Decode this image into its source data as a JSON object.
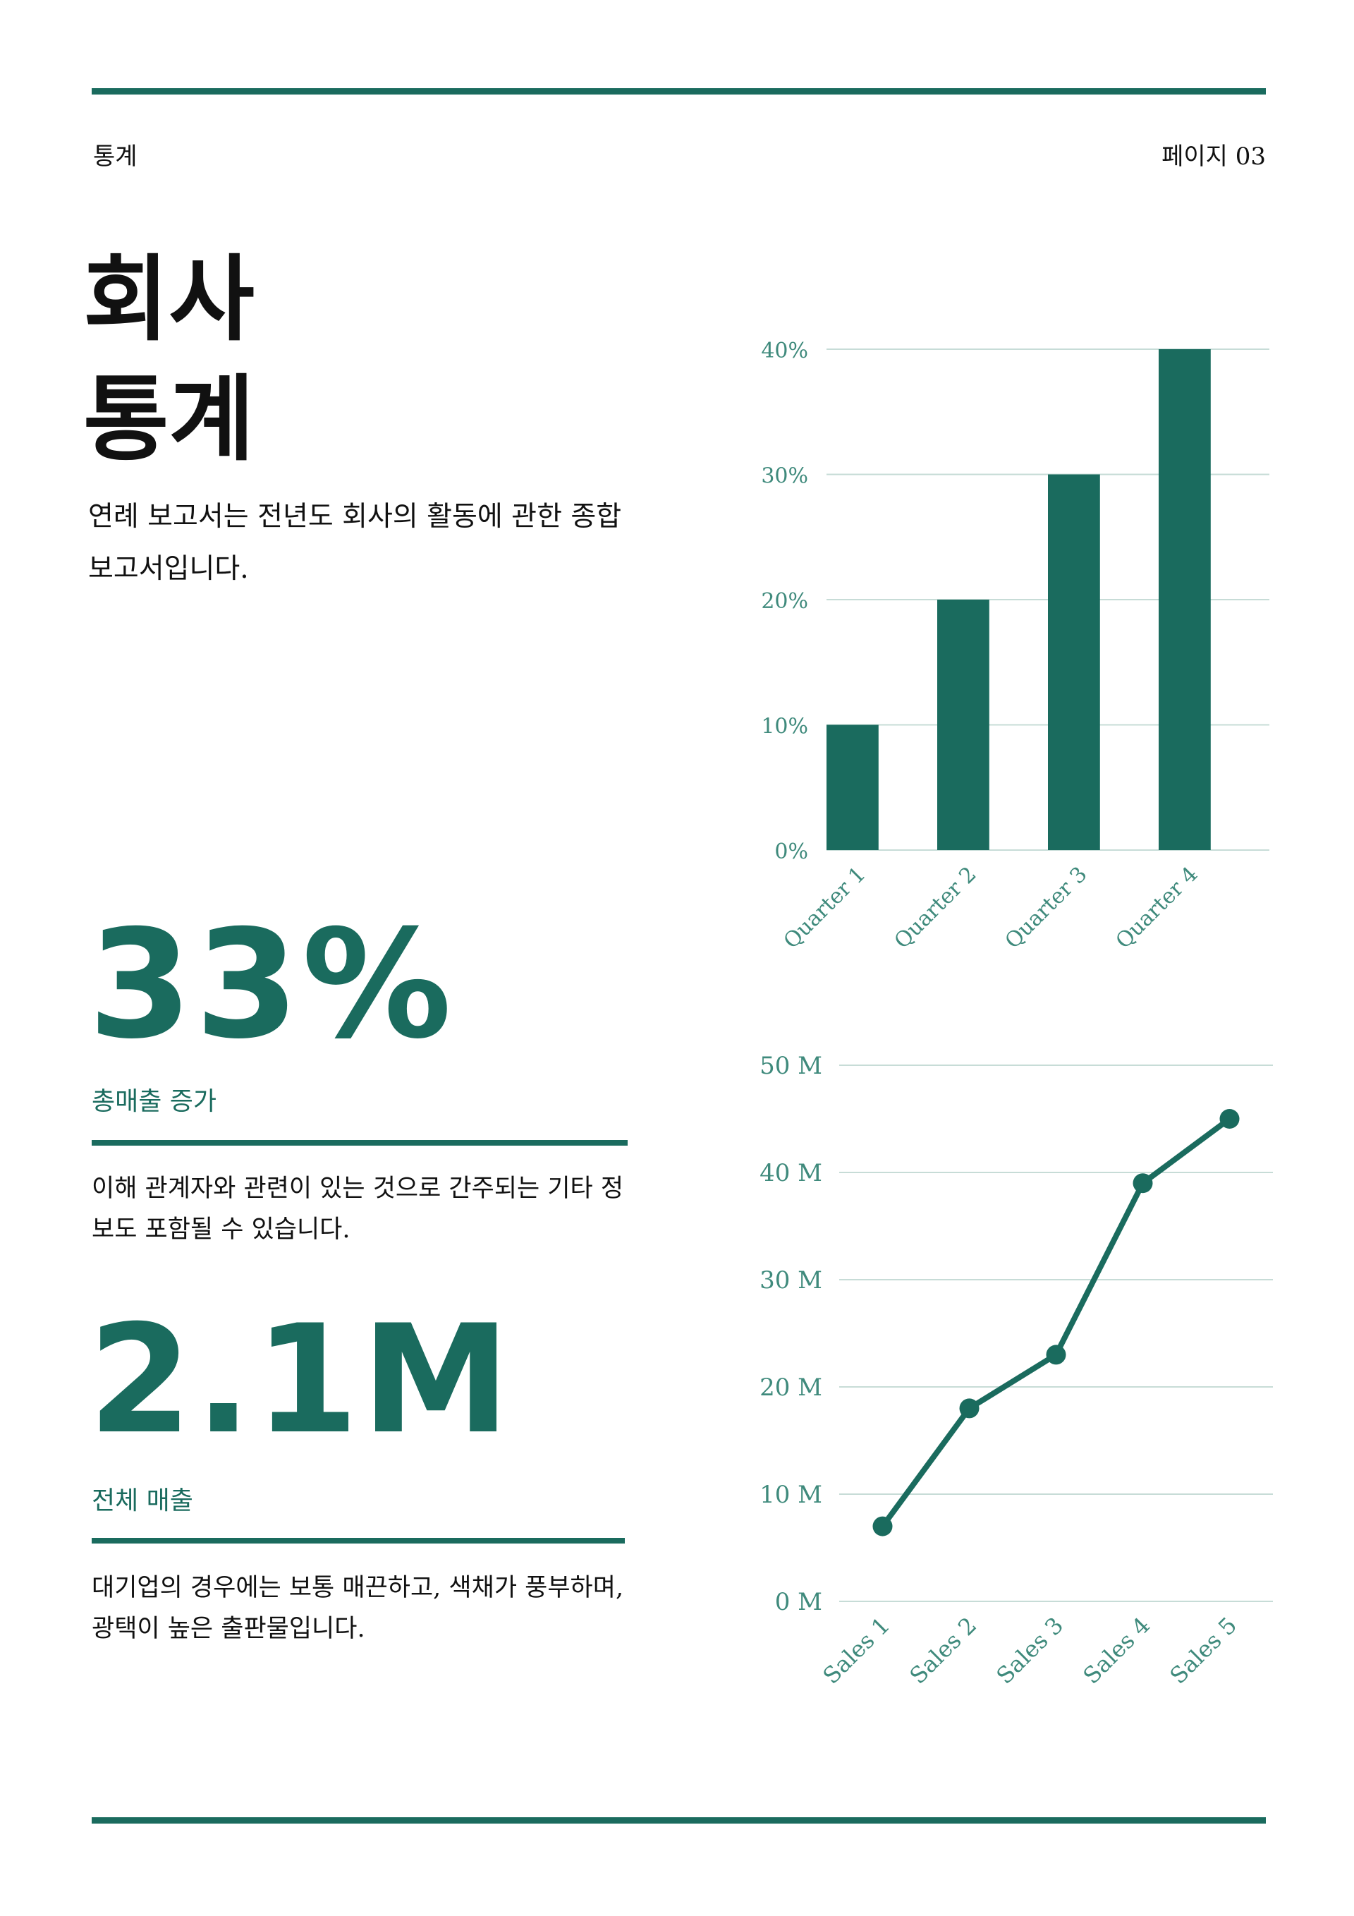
{
  "header": {
    "section": "통계",
    "page": "페이지 03"
  },
  "title": {
    "line1": "회사",
    "line2": "통계"
  },
  "intro": "연례 보고서는 전년도 회사의 활동에 관한 종합 보고서입니다.",
  "stats": [
    {
      "value": "33%",
      "label": "총매출 증가",
      "description": "이해 관계자와 관련이 있는 것으로 간주되는 기타 정보도 포함될 수 있습니다."
    },
    {
      "value": "2.1M",
      "label": "전체 매출",
      "description": "대기업의 경우에는 보통 매끈하고, 색채가 풍부하며, 광택이 높은 출판물입니다."
    }
  ],
  "colors": {
    "accent": "#1a6b5e",
    "grid": "#c7dcd7",
    "tick": "#3f8a7c"
  },
  "chart_data": [
    {
      "type": "bar",
      "categories": [
        "Quarter 1",
        "Quarter 2",
        "Quarter 3",
        "Quarter 4"
      ],
      "values": [
        10,
        20,
        30,
        40
      ],
      "ylim": [
        0,
        40
      ],
      "yticks": [
        0,
        10,
        20,
        30,
        40
      ],
      "ytick_labels": [
        "0%",
        "10%",
        "20%",
        "30%",
        "40%"
      ],
      "grid": true
    },
    {
      "type": "line",
      "categories": [
        "Sales 1",
        "Sales 2",
        "Sales 3",
        "Sales 4",
        "Sales 5"
      ],
      "values": [
        7,
        18,
        23,
        39,
        45
      ],
      "ylim": [
        0,
        50
      ],
      "yticks": [
        0,
        10,
        20,
        30,
        40,
        50
      ],
      "ytick_labels": [
        "0 M",
        "10 M",
        "20 M",
        "30 M",
        "40 M",
        "50 M"
      ],
      "grid": true,
      "markers": true
    }
  ]
}
